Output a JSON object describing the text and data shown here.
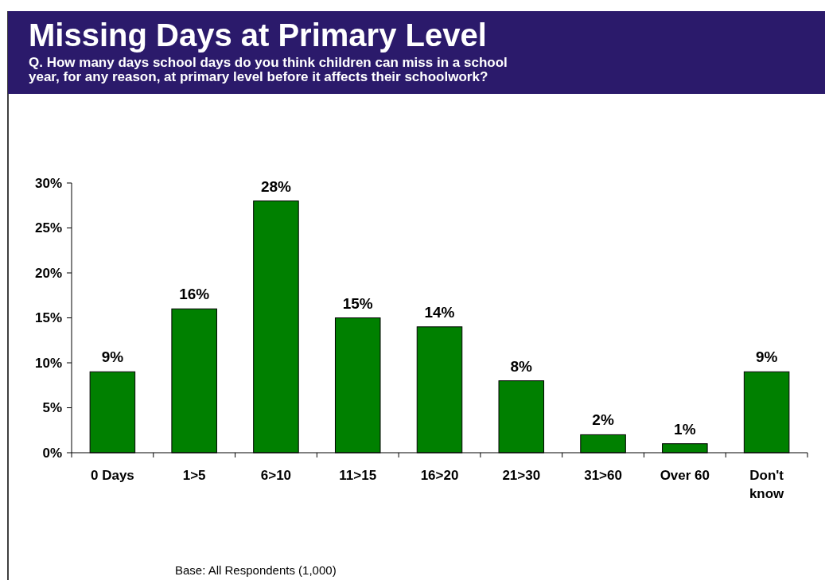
{
  "chart_data": {
    "type": "bar",
    "title": "Missing Days at Primary Level",
    "subtitle": "Q.  How many days school days do you think children can miss in a school year, for any reason, at primary level before it affects their schoolwork?",
    "categories": [
      "0 Days",
      "1>5",
      "6>10",
      "11>15",
      "16>20",
      "21>30",
      "31>60",
      "Over 60",
      "Don't know"
    ],
    "values": [
      9,
      16,
      28,
      15,
      14,
      8,
      2,
      1,
      9
    ],
    "value_labels": [
      "9%",
      "16%",
      "28%",
      "15%",
      "14%",
      "8%",
      "2%",
      "1%",
      "9%"
    ],
    "color": "#008000",
    "ylim": [
      0,
      30
    ],
    "yticks": [
      {
        "value": 0,
        "label": "0%"
      },
      {
        "value": 5,
        "label": "5%"
      },
      {
        "value": 10,
        "label": "10%"
      },
      {
        "value": 15,
        "label": "15%"
      },
      {
        "value": 20,
        "label": "20%"
      },
      {
        "value": 25,
        "label": "25%"
      },
      {
        "value": 30,
        "label": "30%"
      }
    ],
    "grid": false,
    "annotations": [
      "Base: All Respondents (1,000)"
    ]
  }
}
